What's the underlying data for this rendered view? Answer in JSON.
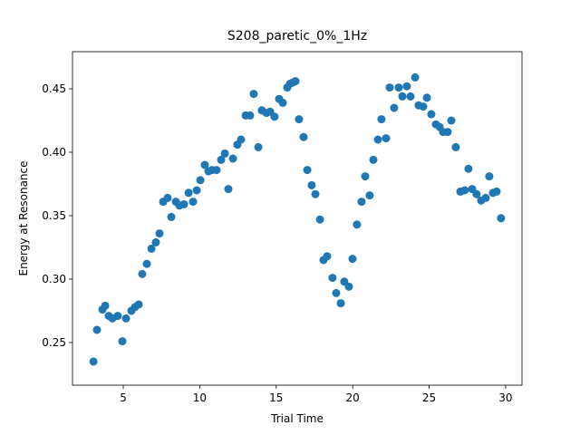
{
  "chart_data": {
    "type": "scatter",
    "title": "S208_paretic_0%_1Hz",
    "x_label": "Trial Time",
    "y_label": "Energy at Resonance",
    "color": "#1f77b4",
    "xlim": [
      1.68,
      31.07
    ],
    "ylim": [
      0.2164,
      0.4793
    ],
    "xticks": [
      5,
      10,
      15,
      20,
      25,
      30
    ],
    "yticks": [
      0.25,
      {
        "value": 0.3,
        "label": "0.30"
      },
      0.35,
      {
        "value": 0.4,
        "label": "0.40"
      },
      0.45
    ],
    "x": [
      3.05,
      3.28,
      3.64,
      3.82,
      4.05,
      4.29,
      4.64,
      4.94,
      5.18,
      5.53,
      5.77,
      6.01,
      6.24,
      6.54,
      6.84,
      7.13,
      7.37,
      7.61,
      7.9,
      8.14,
      8.44,
      8.67,
      8.97,
      9.27,
      9.56,
      9.8,
      10.04,
      10.33,
      10.57,
      10.81,
      11.1,
      11.4,
      11.64,
      11.87,
      12.17,
      12.46,
      12.7,
      13.0,
      13.29,
      13.53,
      13.83,
      14.06,
      14.36,
      14.6,
      14.89,
      15.19,
      15.43,
      15.72,
      15.9,
      16.08,
      16.26,
      16.49,
      16.79,
      17.03,
      17.32,
      17.56,
      17.86,
      18.09,
      18.33,
      18.68,
      18.92,
      19.22,
      19.45,
      19.75,
      19.99,
      20.28,
      20.58,
      20.82,
      21.11,
      21.35,
      21.65,
      21.88,
      22.18,
      22.42,
      22.71,
      23.01,
      23.25,
      23.54,
      23.78,
      24.08,
      24.31,
      24.61,
      24.85,
      25.14,
      25.44,
      25.68,
      25.91,
      26.21,
      26.45,
      26.74,
      27.04,
      27.33,
      27.57,
      27.81,
      28.1,
      28.4,
      28.7,
      28.93,
      29.17,
      29.41,
      29.7
    ],
    "values": [
      0.235,
      0.26,
      0.276,
      0.279,
      0.271,
      0.269,
      0.271,
      0.251,
      0.269,
      0.275,
      0.278,
      0.28,
      0.304,
      0.312,
      0.324,
      0.329,
      0.336,
      0.361,
      0.364,
      0.349,
      0.361,
      0.358,
      0.359,
      0.368,
      0.361,
      0.37,
      0.378,
      0.39,
      0.385,
      0.386,
      0.386,
      0.394,
      0.399,
      0.371,
      0.395,
      0.406,
      0.41,
      0.429,
      0.429,
      0.446,
      0.404,
      0.433,
      0.431,
      0.432,
      0.428,
      0.442,
      0.439,
      0.451,
      0.454,
      0.455,
      0.456,
      0.426,
      0.412,
      0.386,
      0.374,
      0.367,
      0.347,
      0.315,
      0.318,
      0.301,
      0.289,
      0.281,
      0.298,
      0.294,
      0.316,
      0.343,
      0.361,
      0.381,
      0.366,
      0.394,
      0.41,
      0.426,
      0.411,
      0.451,
      0.435,
      0.451,
      0.444,
      0.452,
      0.444,
      0.459,
      0.437,
      0.436,
      0.443,
      0.43,
      0.422,
      0.42,
      0.416,
      0.416,
      0.425,
      0.404,
      0.369,
      0.37,
      0.387,
      0.371,
      0.367,
      0.362,
      0.364,
      0.381,
      0.368,
      0.369,
      0.348
    ]
  }
}
